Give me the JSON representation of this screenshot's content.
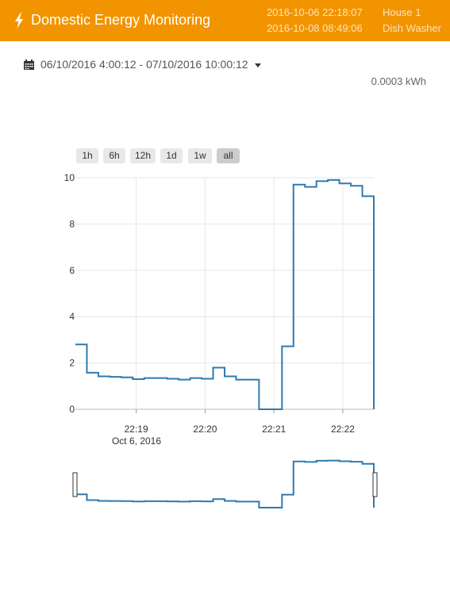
{
  "app": {
    "title": "Domestic Energy Monitoring",
    "icon": "bolt-icon"
  },
  "header": {
    "rows": [
      {
        "datetime": "2016-10-06 22:18:07",
        "label": "House 1"
      },
      {
        "datetime": "2016-10-08 08:49:06",
        "label": "Dish Washer"
      }
    ]
  },
  "range": {
    "text": "06/10/2016 4:00:12 - 07/10/2016 10:00:12",
    "icon": "calendar-icon"
  },
  "energy": {
    "text": "0.0003 kWh"
  },
  "zoom": {
    "buttons": [
      "1h",
      "6h",
      "12h",
      "1d",
      "1w",
      "all"
    ],
    "active": "all"
  },
  "colors": {
    "header": "#f29400",
    "line": "#2f7ab0"
  },
  "chart_data": {
    "type": "line",
    "step": true,
    "x_ticks": [
      "22:19",
      "22:20",
      "22:21",
      "22:22"
    ],
    "x_sub_label": "Oct 6, 2016",
    "ylim": [
      0,
      10
    ],
    "y_ticks": [
      "0",
      "2",
      "4",
      "6",
      "8",
      "10"
    ],
    "grid": true,
    "series": [
      {
        "x": [
          "22:18:07",
          "22:18:17",
          "22:18:27",
          "22:18:37",
          "22:18:47",
          "22:18:57",
          "22:19:07",
          "22:19:17",
          "22:19:27",
          "22:19:37",
          "22:19:47",
          "22:19:57",
          "22:20:07",
          "22:20:17",
          "22:20:27",
          "22:20:37",
          "22:20:47",
          "22:20:57",
          "22:21:07",
          "22:21:17",
          "22:21:27",
          "22:21:37",
          "22:21:47",
          "22:21:57",
          "22:22:07",
          "22:22:17",
          "22:22:27"
        ],
        "y": [
          2.8,
          1.58,
          1.42,
          1.4,
          1.38,
          1.3,
          1.35,
          1.35,
          1.32,
          1.28,
          1.35,
          1.32,
          1.8,
          1.42,
          1.28,
          1.28,
          0.0,
          0.0,
          2.72,
          9.7,
          9.6,
          9.85,
          9.9,
          9.75,
          9.65,
          9.2,
          0.0
        ]
      }
    ]
  }
}
